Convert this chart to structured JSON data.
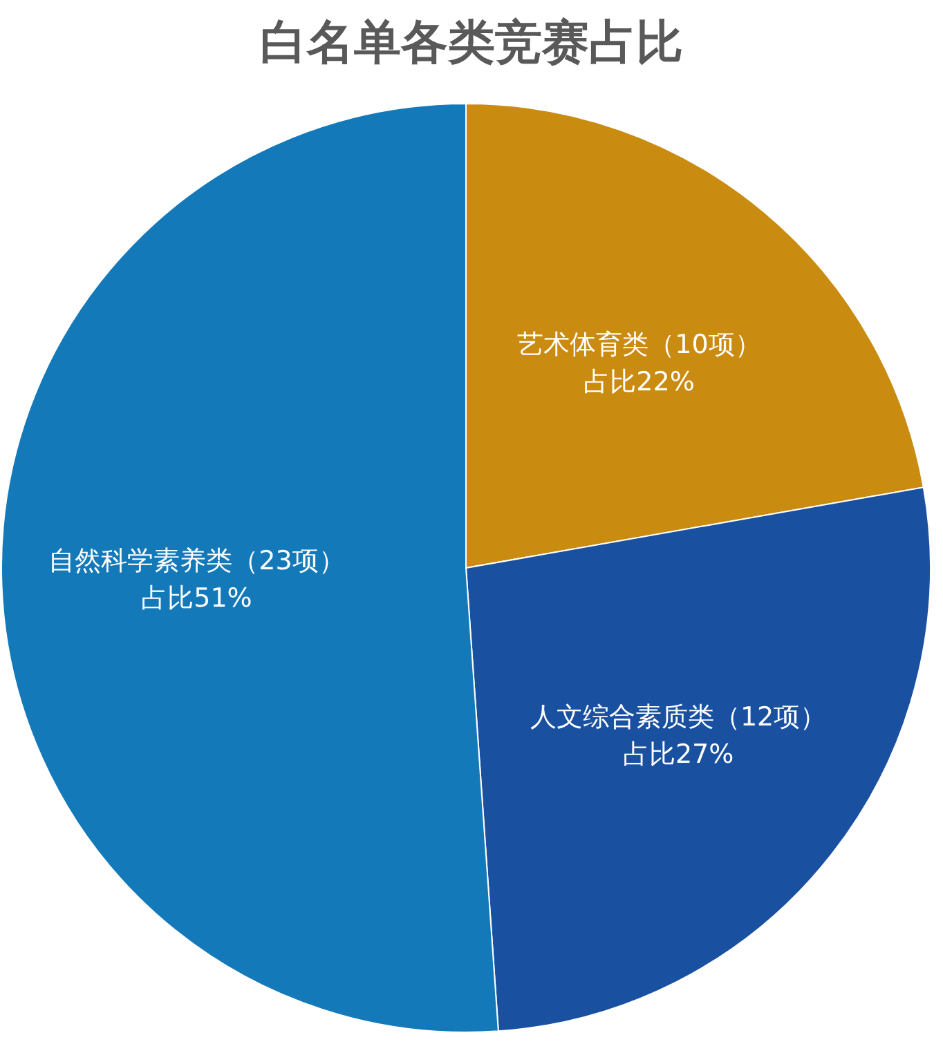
{
  "chart_data": {
    "type": "pie",
    "title": "白名单各类竞赛占比",
    "categories": [
      "艺术体育类（10项）",
      "人文综合素质类（12项）",
      "自然科学素养类（23项）"
    ],
    "values": [
      10,
      12,
      23
    ],
    "value_labels": [
      "占比22%",
      "占比27%",
      "占比51%"
    ],
    "colors": [
      "#c98b10",
      "#1a50a0",
      "#1479b9"
    ]
  }
}
